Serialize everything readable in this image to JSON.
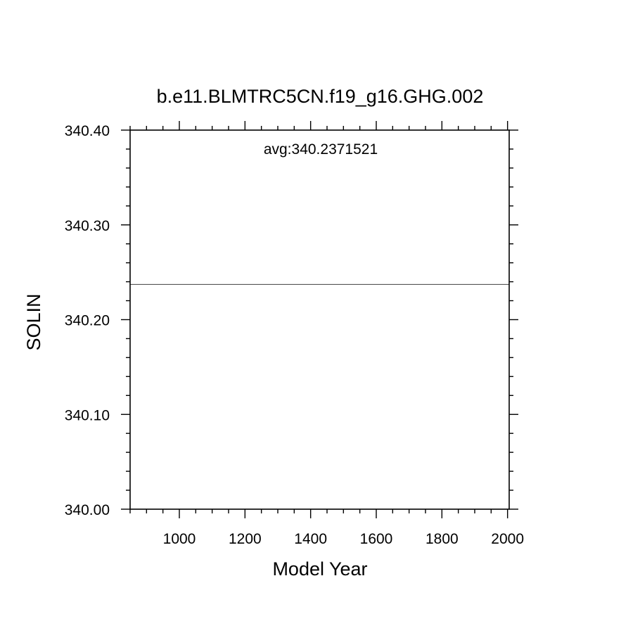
{
  "chart_data": {
    "type": "line",
    "title": "b.e11.BLMTRC5CN.f19_g16.GHG.002",
    "xlabel": "Model Year",
    "ylabel": "SOLIN",
    "xlim": [
      850,
      2005
    ],
    "ylim": [
      340.0,
      340.4
    ],
    "x_ticks": [
      1000,
      1200,
      1400,
      1600,
      1800,
      2000
    ],
    "x_tick_labels": [
      "1000",
      "1200",
      "1400",
      "1600",
      "1800",
      "2000"
    ],
    "x_minor_step": 50,
    "y_ticks": [
      340.0,
      340.1,
      340.2,
      340.3,
      340.4
    ],
    "y_tick_labels": [
      "340.00",
      "340.10",
      "340.20",
      "340.30",
      "340.40"
    ],
    "y_minor_step": 0.02,
    "grid": false,
    "annotation": "avg:340.2371521",
    "series": [
      {
        "x": [
          850,
          2005
        ],
        "values": [
          340.2371521,
          340.2371521
        ],
        "color": "#555555"
      }
    ]
  }
}
